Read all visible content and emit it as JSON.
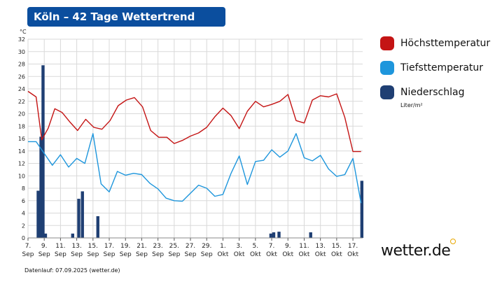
{
  "title": "Köln – 42 Tage Wettertrend",
  "footer": "Datenlauf: 07.09.2025 (wetter.de)",
  "brand": {
    "name": "wetter.de",
    "dot_color": "#e8a800"
  },
  "legend": {
    "max_label": "Höchsttemperatur",
    "min_label": "Tiefsttemperatur",
    "precip_label": "Niederschlag",
    "precip_unit": "Liter/m²"
  },
  "colors": {
    "title_bg": "#0b4e9e",
    "max": "#c41414",
    "min": "#1e96dc",
    "precip": "#1f3f73",
    "grid": "#d9d9d9"
  },
  "chart_data": {
    "type": "line",
    "ylabel": "°C",
    "ylim": [
      0,
      32
    ],
    "yticks": [
      0,
      2,
      4,
      6,
      8,
      10,
      12,
      14,
      16,
      18,
      20,
      22,
      24,
      26,
      28,
      30,
      32
    ],
    "x_range": [
      7,
      50
    ],
    "x_ticks": [
      {
        "x": 7,
        "day": "7.",
        "month": "Sep"
      },
      {
        "x": 9,
        "day": "9.",
        "month": "Sep"
      },
      {
        "x": 11,
        "day": "11.",
        "month": "Sep"
      },
      {
        "x": 13,
        "day": "13.",
        "month": "Sep"
      },
      {
        "x": 15,
        "day": "15.",
        "month": "Sep"
      },
      {
        "x": 17,
        "day": "17.",
        "month": "Sep"
      },
      {
        "x": 19,
        "day": "19.",
        "month": "Sep"
      },
      {
        "x": 21,
        "day": "21.",
        "month": "Sep"
      },
      {
        "x": 23,
        "day": "23.",
        "month": "Sep"
      },
      {
        "x": 25,
        "day": "25.",
        "month": "Sep"
      },
      {
        "x": 27,
        "day": "27.",
        "month": "Sep"
      },
      {
        "x": 29,
        "day": "29.",
        "month": "Sep"
      },
      {
        "x": 31,
        "day": "1.",
        "month": "Okt"
      },
      {
        "x": 33,
        "day": "3.",
        "month": "Okt"
      },
      {
        "x": 35,
        "day": "5.",
        "month": "Okt"
      },
      {
        "x": 37,
        "day": "7.",
        "month": "Okt"
      },
      {
        "x": 39,
        "day": "9.",
        "month": "Okt"
      },
      {
        "x": 41,
        "day": "11.",
        "month": "Okt"
      },
      {
        "x": 43,
        "day": "13.",
        "month": "Okt"
      },
      {
        "x": 45,
        "day": "15.",
        "month": "Okt"
      },
      {
        "x": 47,
        "day": "17.",
        "month": "Okt"
      }
    ],
    "series": [
      {
        "name": "Höchsttemperatur",
        "type": "line",
        "color": "#c41414",
        "x": [
          7,
          8,
          8.7,
          9.5,
          10.3,
          11.2,
          12.2,
          13.1,
          14.1,
          15.1,
          16.1,
          17.1,
          18.1,
          19.1,
          20.1,
          21.1,
          22.1,
          23.1,
          24.1,
          25,
          26,
          27,
          28,
          29,
          30,
          31,
          32,
          33,
          34,
          35,
          36,
          37,
          38,
          39,
          40,
          41,
          42,
          43,
          44,
          45,
          46,
          47,
          48
        ],
        "values": [
          23.6,
          22.7,
          15.8,
          17.7,
          20.8,
          20.2,
          18.6,
          17.3,
          19.1,
          17.8,
          17.5,
          18.9,
          21.3,
          22.2,
          22.6,
          21.1,
          17.3,
          16.2,
          16.2,
          15.2,
          15.7,
          16.4,
          16.9,
          17.8,
          19.5,
          20.9,
          19.7,
          17.6,
          20.4,
          22.0,
          21.1,
          21.5,
          22.0,
          23.1,
          18.9,
          18.5,
          22.2,
          22.9,
          22.7,
          23.2,
          19.4,
          13.9,
          13.9
        ]
      },
      {
        "name": "Tiefsttemperatur",
        "type": "line",
        "color": "#1e96dc",
        "x": [
          7,
          8,
          9,
          10,
          11,
          12,
          13,
          14,
          15,
          16,
          17,
          18,
          19,
          20,
          21,
          22,
          23,
          24,
          25,
          26,
          27,
          28,
          29,
          30,
          31,
          32,
          33,
          34,
          35,
          36,
          37,
          38,
          39,
          40,
          41,
          42,
          43,
          44,
          45,
          46,
          47,
          48
        ],
        "values": [
          15.5,
          15.5,
          13.6,
          11.7,
          13.4,
          11.4,
          12.8,
          12.0,
          16.8,
          8.7,
          7.4,
          10.7,
          10.1,
          10.4,
          10.2,
          8.8,
          7.9,
          6.4,
          6.0,
          5.9,
          7.2,
          8.5,
          8.0,
          6.7,
          7.0,
          10.4,
          13.2,
          8.6,
          12.3,
          12.5,
          14.2,
          13.0,
          14.0,
          16.8,
          12.9,
          12.4,
          13.3,
          11.1,
          9.9,
          10.2,
          12.8,
          5.6
        ]
      },
      {
        "name": "Niederschlag",
        "type": "bar",
        "color": "#1f3f73",
        "x": [
          8.25,
          8.6,
          8.85,
          9.15,
          12.5,
          13.25,
          13.7,
          15.6,
          36.9,
          37.25,
          37.9,
          39.45,
          41.8
        ],
        "values": [
          7.6,
          16.3,
          27.8,
          0.7,
          0.7,
          6.3,
          7.5,
          3.5,
          0.7,
          0.9,
          1.0,
          0,
          0.9
        ],
        "note_values": "liters per m²; last bar values shown on chart scale"
      }
    ],
    "extra_bars": [
      {
        "x": 48.1,
        "value": 9.2
      }
    ],
    "grid": true,
    "legend_position": "right"
  }
}
